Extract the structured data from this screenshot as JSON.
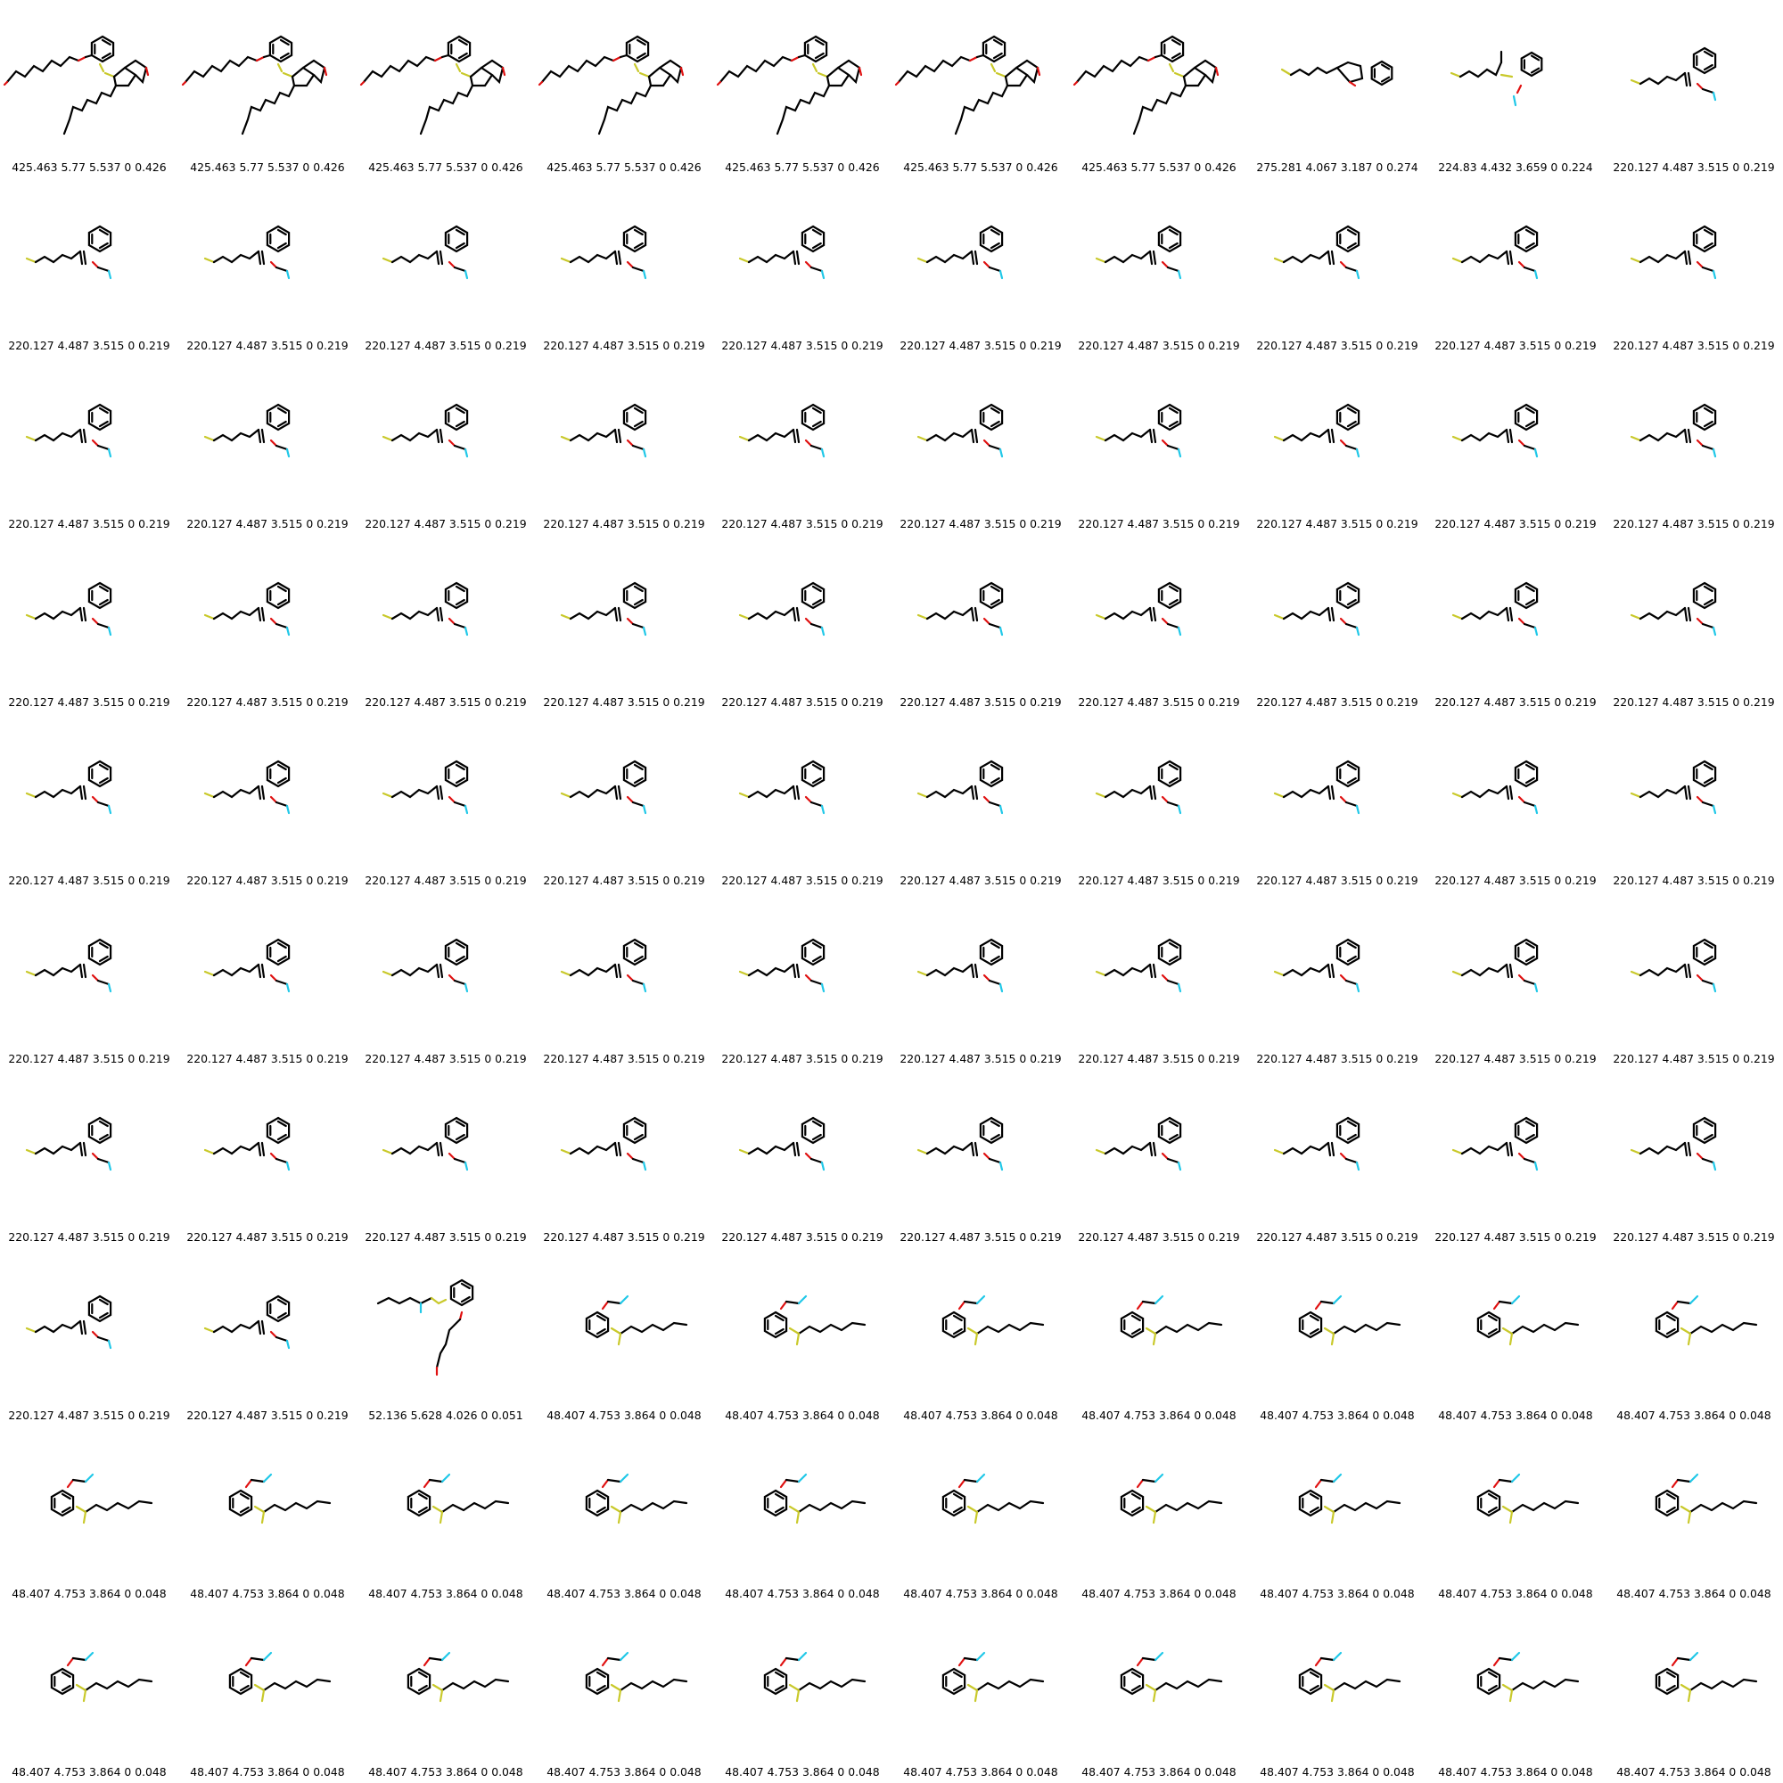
{
  "grid": {
    "columns": 10,
    "rows": 10
  },
  "colors": {
    "background": "#ffffff",
    "bond": "#000000",
    "sulfur": "#c9c92a",
    "oxygen": "#e01010",
    "fluorine": "#20c8e8"
  },
  "motifs": {
    "A": "bicyclic sulfur compound with phenoxy dienal chain and hexatrienylidene tail",
    "B": "benzofuran with allyl sulfanyl chain",
    "C": "methylene linked thioether with fluoromethoxy phenyl",
    "D": "thio-pentenyl vinyl fluoromethoxy benzene",
    "E": "phenyl sulfanyl vinyl thioether with dienal ether",
    "F": "fluoromethoxy phenyl sulfanyl hexatrienyl chain"
  },
  "cells": [
    {
      "motif": "A",
      "label": "425.463 5.77 5.537 0 0.426"
    },
    {
      "motif": "A",
      "label": "425.463 5.77 5.537 0 0.426"
    },
    {
      "motif": "A",
      "label": "425.463 5.77 5.537 0 0.426"
    },
    {
      "motif": "A",
      "label": "425.463 5.77 5.537 0 0.426"
    },
    {
      "motif": "A",
      "label": "425.463 5.77 5.537 0 0.426"
    },
    {
      "motif": "A",
      "label": "425.463 5.77 5.537 0 0.426"
    },
    {
      "motif": "A",
      "label": "425.463 5.77 5.537 0 0.426"
    },
    {
      "motif": "B",
      "label": "275.281 4.067 3.187 0 0.274"
    },
    {
      "motif": "C",
      "label": "224.83 4.432 3.659 0 0.224"
    },
    {
      "motif": "D",
      "label": "220.127 4.487 3.515 0 0.219"
    },
    {
      "motif": "D",
      "label": "220.127 4.487 3.515 0 0.219"
    },
    {
      "motif": "D",
      "label": "220.127 4.487 3.515 0 0.219"
    },
    {
      "motif": "D",
      "label": "220.127 4.487 3.515 0 0.219"
    },
    {
      "motif": "D",
      "label": "220.127 4.487 3.515 0 0.219"
    },
    {
      "motif": "D",
      "label": "220.127 4.487 3.515 0 0.219"
    },
    {
      "motif": "D",
      "label": "220.127 4.487 3.515 0 0.219"
    },
    {
      "motif": "D",
      "label": "220.127 4.487 3.515 0 0.219"
    },
    {
      "motif": "D",
      "label": "220.127 4.487 3.515 0 0.219"
    },
    {
      "motif": "D",
      "label": "220.127 4.487 3.515 0 0.219"
    },
    {
      "motif": "D",
      "label": "220.127 4.487 3.515 0 0.219"
    },
    {
      "motif": "D",
      "label": "220.127 4.487 3.515 0 0.219"
    },
    {
      "motif": "D",
      "label": "220.127 4.487 3.515 0 0.219"
    },
    {
      "motif": "D",
      "label": "220.127 4.487 3.515 0 0.219"
    },
    {
      "motif": "D",
      "label": "220.127 4.487 3.515 0 0.219"
    },
    {
      "motif": "D",
      "label": "220.127 4.487 3.515 0 0.219"
    },
    {
      "motif": "D",
      "label": "220.127 4.487 3.515 0 0.219"
    },
    {
      "motif": "D",
      "label": "220.127 4.487 3.515 0 0.219"
    },
    {
      "motif": "D",
      "label": "220.127 4.487 3.515 0 0.219"
    },
    {
      "motif": "D",
      "label": "220.127 4.487 3.515 0 0.219"
    },
    {
      "motif": "D",
      "label": "220.127 4.487 3.515 0 0.219"
    },
    {
      "motif": "D",
      "label": "220.127 4.487 3.515 0 0.219"
    },
    {
      "motif": "D",
      "label": "220.127 4.487 3.515 0 0.219"
    },
    {
      "motif": "D",
      "label": "220.127 4.487 3.515 0 0.219"
    },
    {
      "motif": "D",
      "label": "220.127 4.487 3.515 0 0.219"
    },
    {
      "motif": "D",
      "label": "220.127 4.487 3.515 0 0.219"
    },
    {
      "motif": "D",
      "label": "220.127 4.487 3.515 0 0.219"
    },
    {
      "motif": "D",
      "label": "220.127 4.487 3.515 0 0.219"
    },
    {
      "motif": "D",
      "label": "220.127 4.487 3.515 0 0.219"
    },
    {
      "motif": "D",
      "label": "220.127 4.487 3.515 0 0.219"
    },
    {
      "motif": "D",
      "label": "220.127 4.487 3.515 0 0.219"
    },
    {
      "motif": "D",
      "label": "220.127 4.487 3.515 0 0.219"
    },
    {
      "motif": "D",
      "label": "220.127 4.487 3.515 0 0.219"
    },
    {
      "motif": "D",
      "label": "220.127 4.487 3.515 0 0.219"
    },
    {
      "motif": "D",
      "label": "220.127 4.487 3.515 0 0.219"
    },
    {
      "motif": "D",
      "label": "220.127 4.487 3.515 0 0.219"
    },
    {
      "motif": "D",
      "label": "220.127 4.487 3.515 0 0.219"
    },
    {
      "motif": "D",
      "label": "220.127 4.487 3.515 0 0.219"
    },
    {
      "motif": "D",
      "label": "220.127 4.487 3.515 0 0.219"
    },
    {
      "motif": "D",
      "label": "220.127 4.487 3.515 0 0.219"
    },
    {
      "motif": "D",
      "label": "220.127 4.487 3.515 0 0.219"
    },
    {
      "motif": "D",
      "label": "220.127 4.487 3.515 0 0.219"
    },
    {
      "motif": "D",
      "label": "220.127 4.487 3.515 0 0.219"
    },
    {
      "motif": "D",
      "label": "220.127 4.487 3.515 0 0.219"
    },
    {
      "motif": "D",
      "label": "220.127 4.487 3.515 0 0.219"
    },
    {
      "motif": "D",
      "label": "220.127 4.487 3.515 0 0.219"
    },
    {
      "motif": "D",
      "label": "220.127 4.487 3.515 0 0.219"
    },
    {
      "motif": "D",
      "label": "220.127 4.487 3.515 0 0.219"
    },
    {
      "motif": "D",
      "label": "220.127 4.487 3.515 0 0.219"
    },
    {
      "motif": "D",
      "label": "220.127 4.487 3.515 0 0.219"
    },
    {
      "motif": "D",
      "label": "220.127 4.487 3.515 0 0.219"
    },
    {
      "motif": "D",
      "label": "220.127 4.487 3.515 0 0.219"
    },
    {
      "motif": "D",
      "label": "220.127 4.487 3.515 0 0.219"
    },
    {
      "motif": "D",
      "label": "220.127 4.487 3.515 0 0.219"
    },
    {
      "motif": "D",
      "label": "220.127 4.487 3.515 0 0.219"
    },
    {
      "motif": "D",
      "label": "220.127 4.487 3.515 0 0.219"
    },
    {
      "motif": "D",
      "label": "220.127 4.487 3.515 0 0.219"
    },
    {
      "motif": "D",
      "label": "220.127 4.487 3.515 0 0.219"
    },
    {
      "motif": "D",
      "label": "220.127 4.487 3.515 0 0.219"
    },
    {
      "motif": "D",
      "label": "220.127 4.487 3.515 0 0.219"
    },
    {
      "motif": "D",
      "label": "220.127 4.487 3.515 0 0.219"
    },
    {
      "motif": "D",
      "label": "220.127 4.487 3.515 0 0.219"
    },
    {
      "motif": "D",
      "label": "220.127 4.487 3.515 0 0.219"
    },
    {
      "motif": "E",
      "label": "52.136 5.628 4.026 0 0.051"
    },
    {
      "motif": "F",
      "label": "48.407 4.753 3.864 0 0.048"
    },
    {
      "motif": "F",
      "label": "48.407 4.753 3.864 0 0.048"
    },
    {
      "motif": "F",
      "label": "48.407 4.753 3.864 0 0.048"
    },
    {
      "motif": "F",
      "label": "48.407 4.753 3.864 0 0.048"
    },
    {
      "motif": "F",
      "label": "48.407 4.753 3.864 0 0.048"
    },
    {
      "motif": "F",
      "label": "48.407 4.753 3.864 0 0.048"
    },
    {
      "motif": "F",
      "label": "48.407 4.753 3.864 0 0.048"
    },
    {
      "motif": "F",
      "label": "48.407 4.753 3.864 0 0.048"
    },
    {
      "motif": "F",
      "label": "48.407 4.753 3.864 0 0.048"
    },
    {
      "motif": "F",
      "label": "48.407 4.753 3.864 0 0.048"
    },
    {
      "motif": "F",
      "label": "48.407 4.753 3.864 0 0.048"
    },
    {
      "motif": "F",
      "label": "48.407 4.753 3.864 0 0.048"
    },
    {
      "motif": "F",
      "label": "48.407 4.753 3.864 0 0.048"
    },
    {
      "motif": "F",
      "label": "48.407 4.753 3.864 0 0.048"
    },
    {
      "motif": "F",
      "label": "48.407 4.753 3.864 0 0.048"
    },
    {
      "motif": "F",
      "label": "48.407 4.753 3.864 0 0.048"
    },
    {
      "motif": "F",
      "label": "48.407 4.753 3.864 0 0.048"
    },
    {
      "motif": "F",
      "label": "48.407 4.753 3.864 0 0.048"
    },
    {
      "motif": "F",
      "label": "48.407 4.753 3.864 0 0.048"
    },
    {
      "motif": "F",
      "label": "48.407 4.753 3.864 0 0.048"
    },
    {
      "motif": "F",
      "label": "48.407 4.753 3.864 0 0.048"
    },
    {
      "motif": "F",
      "label": "48.407 4.753 3.864 0 0.048"
    },
    {
      "motif": "F",
      "label": "48.407 4.753 3.864 0 0.048"
    },
    {
      "motif": "F",
      "label": "48.407 4.753 3.864 0 0.048"
    },
    {
      "motif": "F",
      "label": "48.407 4.753 3.864 0 0.048"
    },
    {
      "motif": "F",
      "label": "48.407 4.753 3.864 0 0.048"
    },
    {
      "motif": "F",
      "label": "48.407 4.753 3.864 0 0.048"
    }
  ]
}
